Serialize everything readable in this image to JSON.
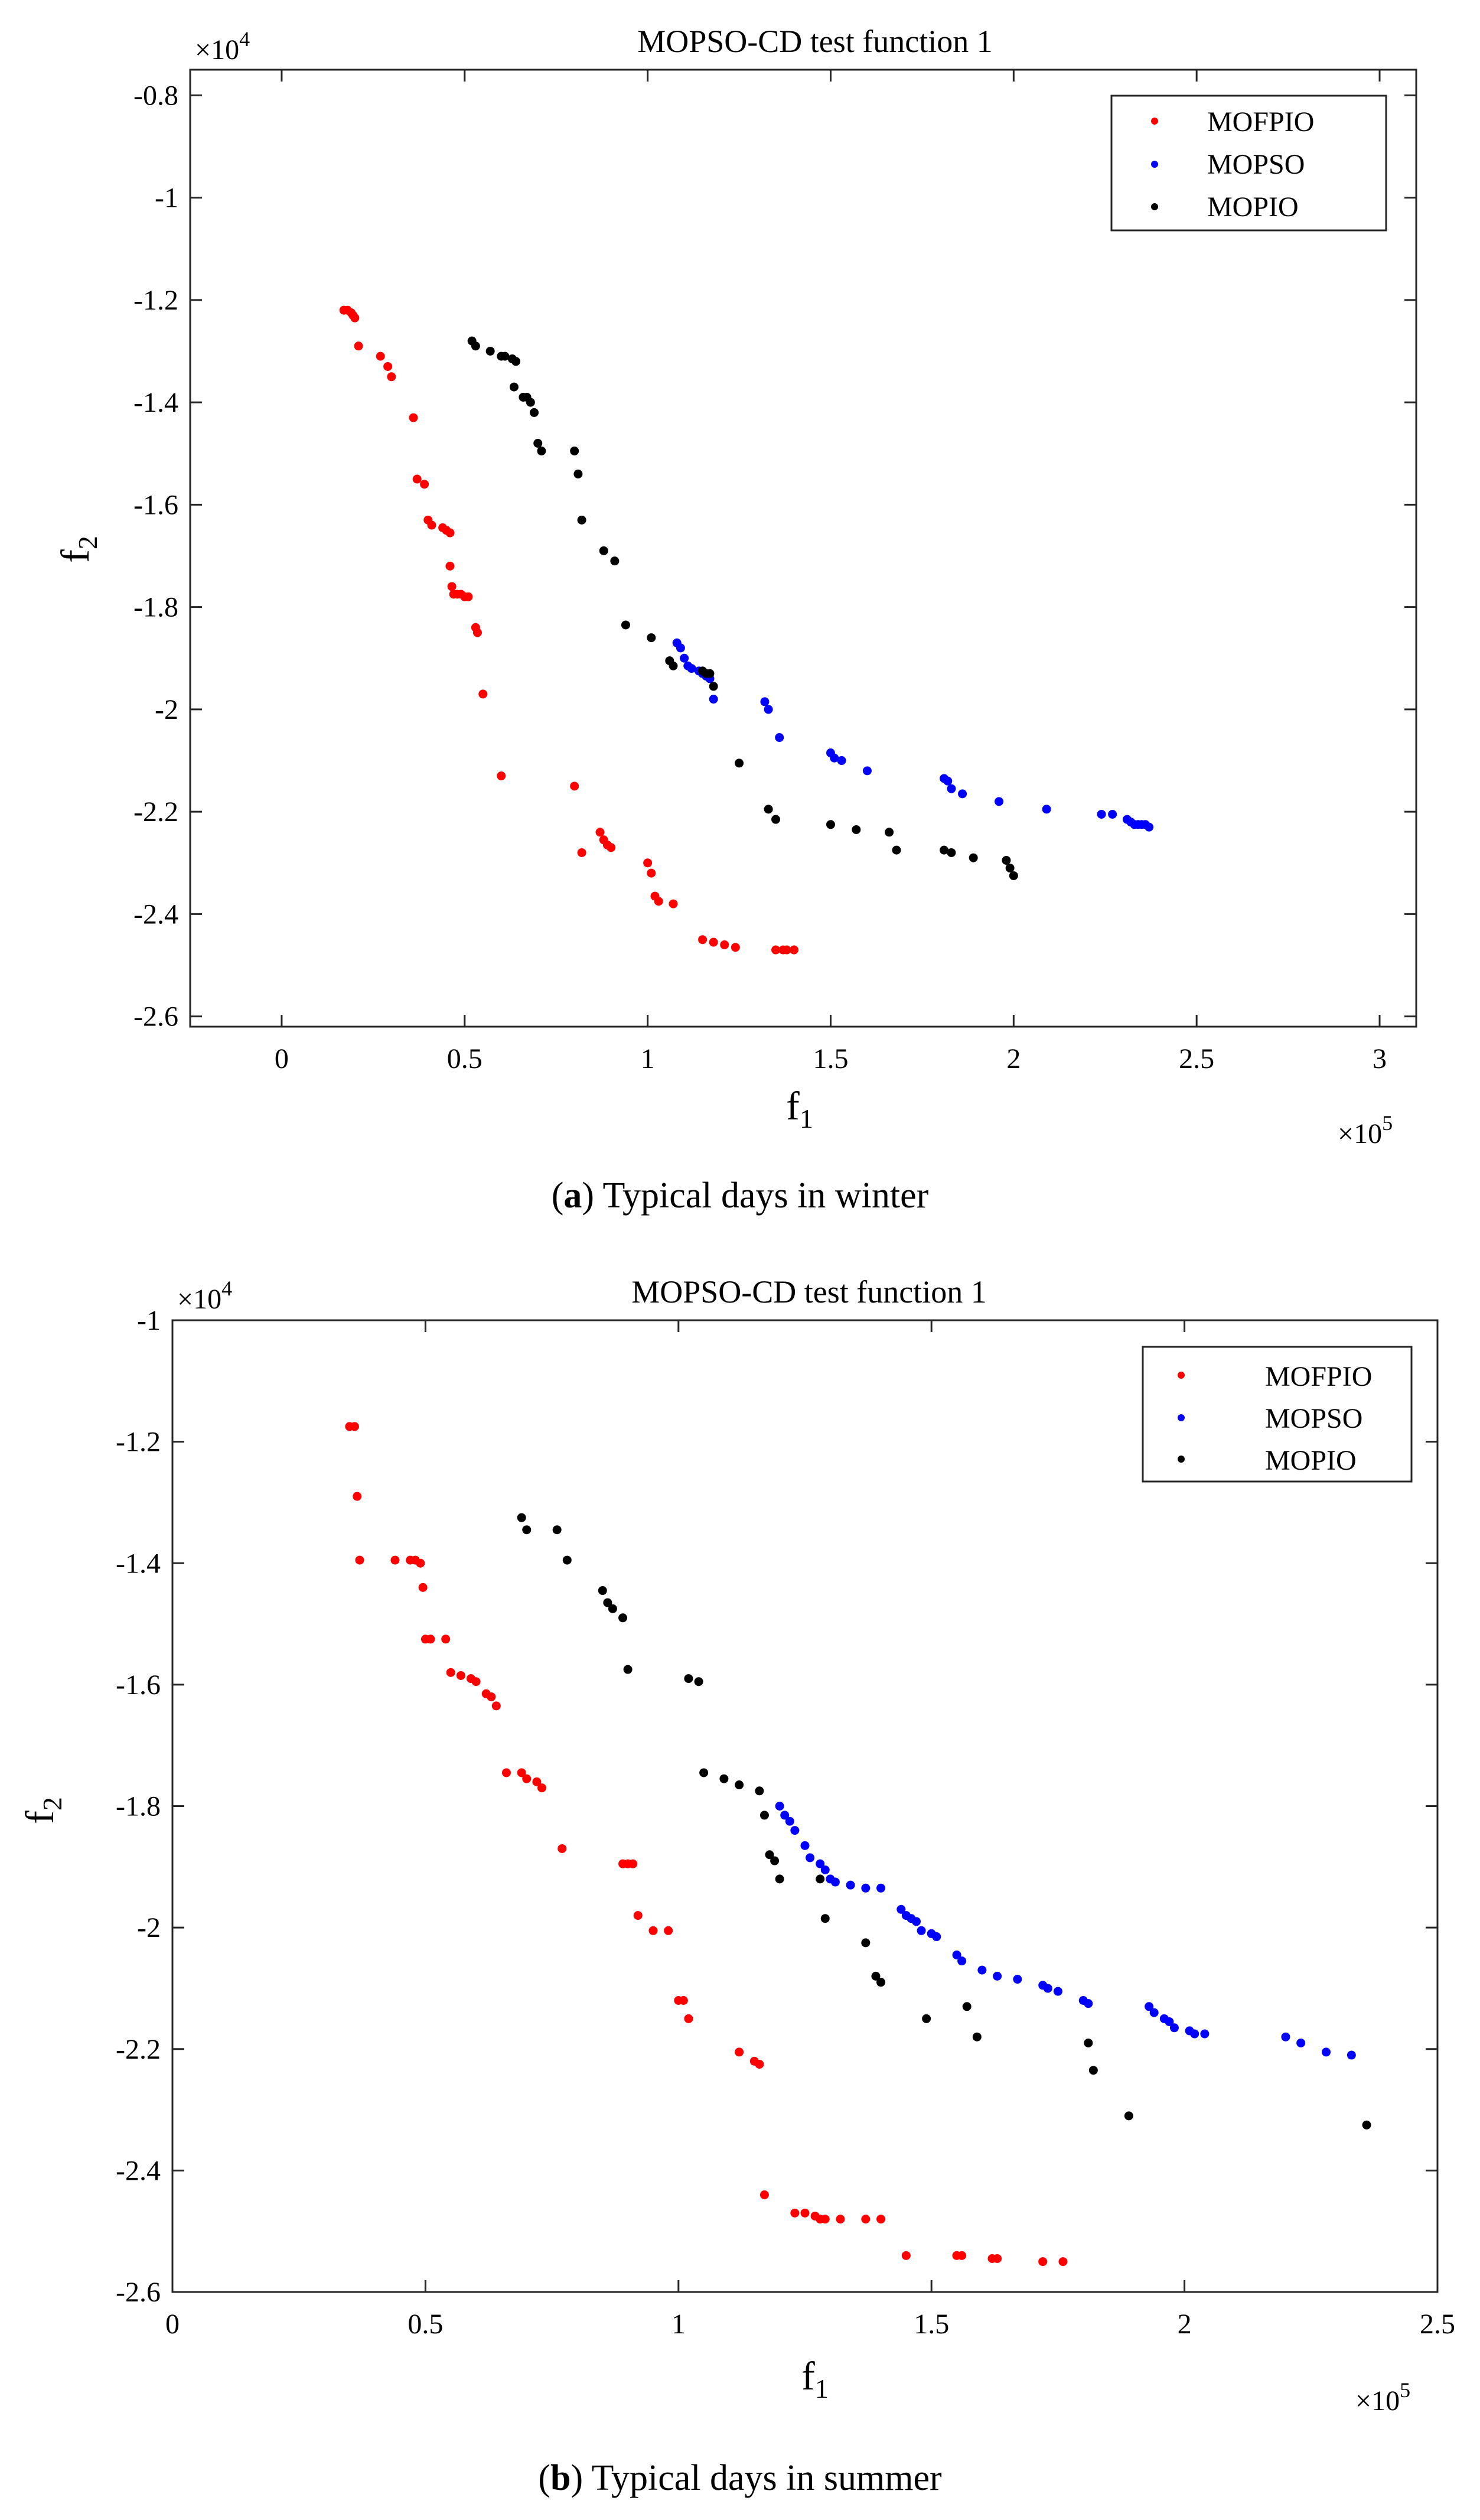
{
  "chart_data": [
    {
      "type": "scatter",
      "panel": "a",
      "title": "MOPSO-CD test function 1",
      "caption_letter": "a",
      "caption_text": " Typical days in winter",
      "xlabel": "f",
      "xlabel_sub": "1",
      "ylabel": "f",
      "ylabel_sub": "2",
      "x_multiplier": "×10",
      "x_exp": "5",
      "y_multiplier": "×10",
      "y_exp": "4",
      "xlim": [
        -0.25,
        3.1
      ],
      "ylim": [
        -2.62,
        -0.75
      ],
      "xticks": [
        0,
        0.5,
        1,
        1.5,
        2,
        2.5,
        3
      ],
      "xtick_labels": [
        "0",
        "0.5",
        "1",
        "1.5",
        "2",
        "2.5",
        "3"
      ],
      "yticks": [
        -0.8,
        -1,
        -1.2,
        -1.4,
        -1.6,
        -1.8,
        -2,
        -2.2,
        -2.4,
        -2.6
      ],
      "ytick_labels": [
        "-0.8",
        "-1",
        "-1.2",
        "-1.4",
        "-1.6",
        "-1.8",
        "-2",
        "-2.2",
        "-2.4",
        "-2.6"
      ],
      "legend_position": "top-right",
      "series": [
        {
          "name": "MOFPIO",
          "color": "#ff0000",
          "x": [
            0.17,
            0.18,
            0.19,
            0.195,
            0.2,
            0.21,
            0.27,
            0.29,
            0.3,
            0.36,
            0.37,
            0.39,
            0.4,
            0.41,
            0.44,
            0.45,
            0.46,
            0.46,
            0.465,
            0.47,
            0.48,
            0.49,
            0.5,
            0.51,
            0.53,
            0.535,
            0.55,
            0.6,
            0.8,
            0.82,
            0.87,
            0.88,
            0.89,
            0.9,
            1.0,
            1.01,
            1.02,
            1.03,
            1.07,
            1.15,
            1.18,
            1.21,
            1.24,
            1.35,
            1.37,
            1.38,
            1.4
          ],
          "y": [
            -1.22,
            -1.22,
            -1.225,
            -1.23,
            -1.235,
            -1.29,
            -1.31,
            -1.33,
            -1.35,
            -1.43,
            -1.55,
            -1.56,
            -1.63,
            -1.64,
            -1.645,
            -1.65,
            -1.655,
            -1.72,
            -1.76,
            -1.775,
            -1.775,
            -1.775,
            -1.78,
            -1.78,
            -1.84,
            -1.85,
            -1.97,
            -2.13,
            -2.15,
            -2.28,
            -2.24,
            -2.255,
            -2.265,
            -2.27,
            -2.3,
            -2.32,
            -2.365,
            -2.375,
            -2.38,
            -2.45,
            -2.455,
            -2.46,
            -2.465,
            -2.47,
            -2.47,
            -2.47,
            -2.47
          ]
        },
        {
          "name": "MOPSO",
          "color": "#0000ff",
          "x": [
            1.08,
            1.09,
            1.1,
            1.11,
            1.12,
            1.14,
            1.15,
            1.16,
            1.17,
            1.18,
            1.32,
            1.33,
            1.36,
            1.5,
            1.51,
            1.53,
            1.6,
            1.81,
            1.82,
            1.83,
            1.86,
            1.96,
            2.09,
            2.24,
            2.27,
            2.31,
            2.32,
            2.33,
            2.34,
            2.35,
            2.36,
            2.37
          ],
          "y": [
            -1.87,
            -1.88,
            -1.9,
            -1.915,
            -1.92,
            -1.925,
            -1.93,
            -1.935,
            -1.94,
            -1.98,
            -1.985,
            -2.0,
            -2.055,
            -2.085,
            -2.095,
            -2.1,
            -2.12,
            -2.135,
            -2.14,
            -2.155,
            -2.165,
            -2.18,
            -2.195,
            -2.205,
            -2.205,
            -2.215,
            -2.22,
            -2.225,
            -2.225,
            -2.225,
            -2.225,
            -2.23
          ]
        },
        {
          "name": "MOPIO",
          "color": "#000000",
          "x": [
            0.52,
            0.53,
            0.57,
            0.6,
            0.61,
            0.63,
            0.64,
            0.635,
            0.66,
            0.67,
            0.68,
            0.69,
            0.7,
            0.71,
            0.8,
            0.81,
            0.82,
            0.88,
            0.91,
            0.94,
            1.01,
            1.06,
            1.07,
            1.15,
            1.16,
            1.17,
            1.18,
            1.25,
            1.33,
            1.35,
            1.5,
            1.57,
            1.66,
            1.68,
            1.81,
            1.83,
            1.89,
            1.98,
            1.99,
            2.0
          ],
          "y": [
            -1.28,
            -1.29,
            -1.3,
            -1.31,
            -1.31,
            -1.315,
            -1.32,
            -1.37,
            -1.39,
            -1.39,
            -1.4,
            -1.42,
            -1.48,
            -1.495,
            -1.495,
            -1.54,
            -1.63,
            -1.69,
            -1.71,
            -1.835,
            -1.86,
            -1.905,
            -1.915,
            -1.925,
            -1.93,
            -1.93,
            -1.955,
            -2.105,
            -2.195,
            -2.215,
            -2.225,
            -2.235,
            -2.24,
            -2.275,
            -2.275,
            -2.28,
            -2.29,
            -2.295,
            -2.31,
            -2.325
          ]
        }
      ]
    },
    {
      "type": "scatter",
      "panel": "b",
      "title": "MOPSO-CD test function 1",
      "caption_letter": "b",
      "caption_text": " Typical days in summer",
      "xlabel": "f",
      "xlabel_sub": "1",
      "ylabel": "f",
      "ylabel_sub": "2",
      "x_multiplier": "×10",
      "x_exp": "5",
      "y_multiplier": "×10",
      "y_exp": "4",
      "xlim": [
        0,
        2.5
      ],
      "ylim": [
        -2.6,
        -1.0
      ],
      "xticks": [
        0,
        0.5,
        1,
        1.5,
        2,
        2.5
      ],
      "xtick_labels": [
        "0",
        "0.5",
        "1",
        "1.5",
        "2",
        "2.5"
      ],
      "yticks": [
        -1,
        -1.2,
        -1.4,
        -1.6,
        -1.8,
        -2,
        -2.2,
        -2.4,
        -2.6
      ],
      "ytick_labels": [
        "-1",
        "-1.2",
        "-1.4",
        "-1.6",
        "-1.8",
        "-2",
        "-2.2",
        "-2.4",
        "-2.6"
      ],
      "legend_position": "top-right",
      "series": [
        {
          "name": "MOFPIO",
          "color": "#ff0000",
          "x": [
            0.35,
            0.36,
            0.365,
            0.37,
            0.44,
            0.47,
            0.48,
            0.49,
            0.495,
            0.5,
            0.51,
            0.54,
            0.55,
            0.57,
            0.59,
            0.6,
            0.62,
            0.63,
            0.64,
            0.66,
            0.69,
            0.7,
            0.72,
            0.73,
            0.77,
            0.89,
            0.9,
            0.91,
            0.92,
            0.95,
            0.98,
            1.0,
            1.01,
            1.02,
            1.12,
            1.15,
            1.16,
            1.17,
            1.23,
            1.25,
            1.27,
            1.28,
            1.29,
            1.32,
            1.37,
            1.4,
            1.45,
            1.55,
            1.56,
            1.62,
            1.63,
            1.72,
            1.76
          ],
          "y": [
            -1.175,
            -1.175,
            -1.29,
            -1.395,
            -1.395,
            -1.395,
            -1.395,
            -1.4,
            -1.44,
            -1.525,
            -1.525,
            -1.525,
            -1.58,
            -1.585,
            -1.59,
            -1.595,
            -1.615,
            -1.62,
            -1.635,
            -1.745,
            -1.745,
            -1.755,
            -1.76,
            -1.77,
            -1.87,
            -1.895,
            -1.895,
            -1.895,
            -1.98,
            -2.005,
            -2.005,
            -2.12,
            -2.12,
            -2.15,
            -2.205,
            -2.22,
            -2.225,
            -2.44,
            -2.47,
            -2.47,
            -2.475,
            -2.48,
            -2.48,
            -2.48,
            -2.48,
            -2.48,
            -2.54,
            -2.54,
            -2.54,
            -2.545,
            -2.545,
            -2.55,
            -2.55
          ]
        },
        {
          "name": "MOPSO",
          "color": "#0000ff",
          "x": [
            1.2,
            1.21,
            1.22,
            1.23,
            1.25,
            1.26,
            1.28,
            1.29,
            1.3,
            1.31,
            1.34,
            1.37,
            1.4,
            1.44,
            1.45,
            1.46,
            1.47,
            1.48,
            1.5,
            1.51,
            1.55,
            1.56,
            1.6,
            1.63,
            1.67,
            1.72,
            1.73,
            1.75,
            1.8,
            1.81,
            1.93,
            1.94,
            1.96,
            1.97,
            1.98,
            2.01,
            2.02,
            2.04,
            2.2,
            2.23,
            2.28,
            2.33
          ],
          "y": [
            -1.8,
            -1.815,
            -1.825,
            -1.84,
            -1.865,
            -1.885,
            -1.895,
            -1.905,
            -1.92,
            -1.925,
            -1.93,
            -1.935,
            -1.935,
            -1.97,
            -1.98,
            -1.985,
            -1.99,
            -2.005,
            -2.01,
            -2.015,
            -2.045,
            -2.055,
            -2.07,
            -2.08,
            -2.085,
            -2.095,
            -2.1,
            -2.105,
            -2.12,
            -2.125,
            -2.13,
            -2.14,
            -2.15,
            -2.155,
            -2.165,
            -2.17,
            -2.175,
            -2.175,
            -2.18,
            -2.19,
            -2.205,
            -2.21
          ]
        },
        {
          "name": "MOPIO",
          "color": "#000000",
          "x": [
            0.69,
            0.7,
            0.76,
            0.78,
            0.85,
            0.86,
            0.87,
            0.89,
            0.9,
            1.02,
            1.04,
            1.05,
            1.09,
            1.12,
            1.16,
            1.17,
            1.18,
            1.19,
            1.2,
            1.28,
            1.29,
            1.37,
            1.39,
            1.4,
            1.49,
            1.57,
            1.59,
            1.81,
            1.82,
            1.89,
            2.36
          ],
          "y": [
            -1.325,
            -1.345,
            -1.345,
            -1.395,
            -1.445,
            -1.465,
            -1.475,
            -1.49,
            -1.575,
            -1.59,
            -1.595,
            -1.745,
            -1.755,
            -1.765,
            -1.775,
            -1.815,
            -1.88,
            -1.89,
            -1.92,
            -1.92,
            -1.985,
            -2.025,
            -2.08,
            -2.09,
            -2.15,
            -2.13,
            -2.18,
            -2.19,
            -2.235,
            -2.31,
            -2.325
          ]
        }
      ]
    }
  ]
}
